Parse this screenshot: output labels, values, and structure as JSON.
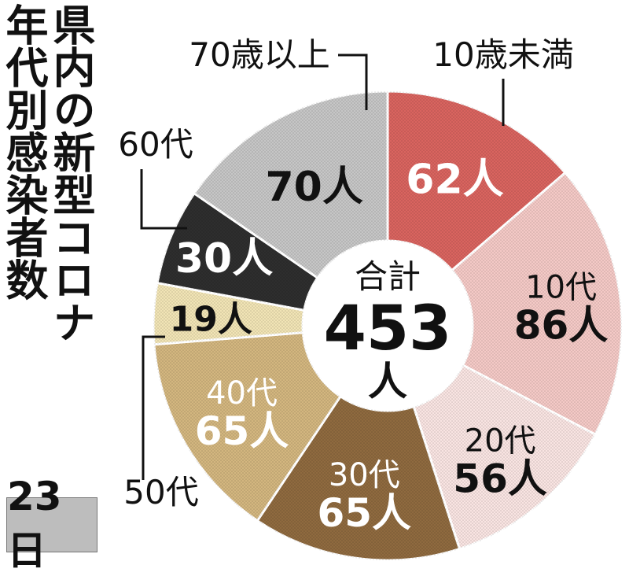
{
  "title": {
    "line1": "県内の新型コロナ",
    "line2": "年代別感染者数"
  },
  "date_label": "23日",
  "center": {
    "label": "合計",
    "total": "453",
    "unit": "人"
  },
  "chart_data": {
    "type": "pie",
    "variant": "donut",
    "total": 453,
    "unit": "人",
    "slices": [
      {
        "category": "10歳未満",
        "value": 62,
        "value_label": "62人",
        "color": "#d9645f",
        "category_position": "outside"
      },
      {
        "category": "10代",
        "value": 86,
        "value_label": "86人",
        "color": "#f4c9c6",
        "category_position": "inside"
      },
      {
        "category": "20代",
        "value": 56,
        "value_label": "56人",
        "color": "#f9e4e2",
        "category_position": "inside"
      },
      {
        "category": "30代",
        "value": 65,
        "value_label": "65人",
        "color": "#8f6a3f",
        "category_position": "inside"
      },
      {
        "category": "40代",
        "value": 65,
        "value_label": "65人",
        "color": "#d3b67f",
        "category_position": "inside"
      },
      {
        "category": "50代",
        "value": 19,
        "value_label": "19人",
        "color": "#f1e4b5",
        "category_position": "outside"
      },
      {
        "category": "60代",
        "value": 30,
        "value_label": "30人",
        "color": "#2e2e2e",
        "category_position": "outside"
      },
      {
        "category": "70歳以上",
        "value": 70,
        "value_label": "70人",
        "color": "#c6c6c6",
        "category_position": "outside"
      }
    ]
  }
}
